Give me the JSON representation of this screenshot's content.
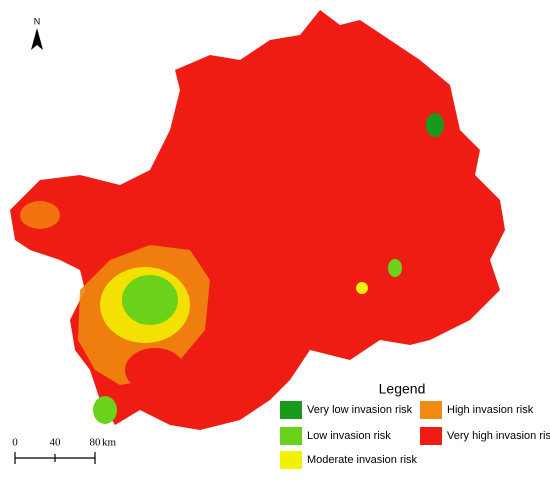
{
  "north_arrow": {
    "label": "N"
  },
  "legend": {
    "title": "Legend",
    "items": [
      {
        "label": "Very low invasion risk",
        "color": "#1a9a1a"
      },
      {
        "label": "Low invasion risk",
        "color": "#6ad21a"
      },
      {
        "label": "Moderate invasion risk",
        "color": "#f2f200"
      },
      {
        "label": "High invasion risk",
        "color": "#f08a10"
      },
      {
        "label": "Very high invasion risk",
        "color": "#ee1c12"
      }
    ]
  },
  "scale_bar": {
    "labels": [
      "0",
      "40",
      "80"
    ],
    "unit": "km"
  }
}
